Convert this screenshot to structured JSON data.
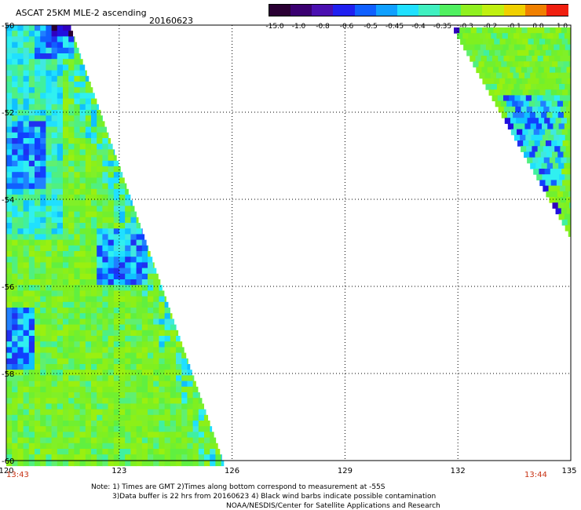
{
  "header": {
    "title": "ASCAT 25KM MLE-2 ascending",
    "date": "20160623"
  },
  "colorbar": {
    "labels": [
      "-15.0",
      "-1.0",
      "-0.8",
      "-0.6",
      "-0.5",
      "-0.45",
      "-0.4",
      "-0.35",
      "-0.3",
      "-0.2",
      "-0.1",
      "0.0",
      "1.0"
    ],
    "colors": [
      "#2a0033",
      "#3a0070",
      "#4a10b0",
      "#2020f0",
      "#1060ff",
      "#10a0ff",
      "#20e0ff",
      "#40f0c0",
      "#50f060",
      "#90f020",
      "#c0f010",
      "#f0d000",
      "#f08000",
      "#f02010"
    ]
  },
  "axes": {
    "lon_ticks": [
      "120",
      "123",
      "126",
      "129",
      "132",
      "135"
    ],
    "lat_ticks": [
      "-50",
      "-52",
      "-54",
      "-56",
      "-58",
      "-60"
    ],
    "lon_range": [
      120,
      135
    ],
    "lat_range": [
      -50,
      -60
    ]
  },
  "times": {
    "left": "13:43",
    "right": "13:44"
  },
  "notes": {
    "line1": "Note: 1) Times are GMT 2)Times along bottom correspond to measurement at -55S",
    "line2": "3)Data buffer is 22 hrs from 20160623 4) Black wind barbs indicate possible contamination",
    "line3": "NOAA/NESDIS/Center for Satellite Applications and Research"
  }
}
